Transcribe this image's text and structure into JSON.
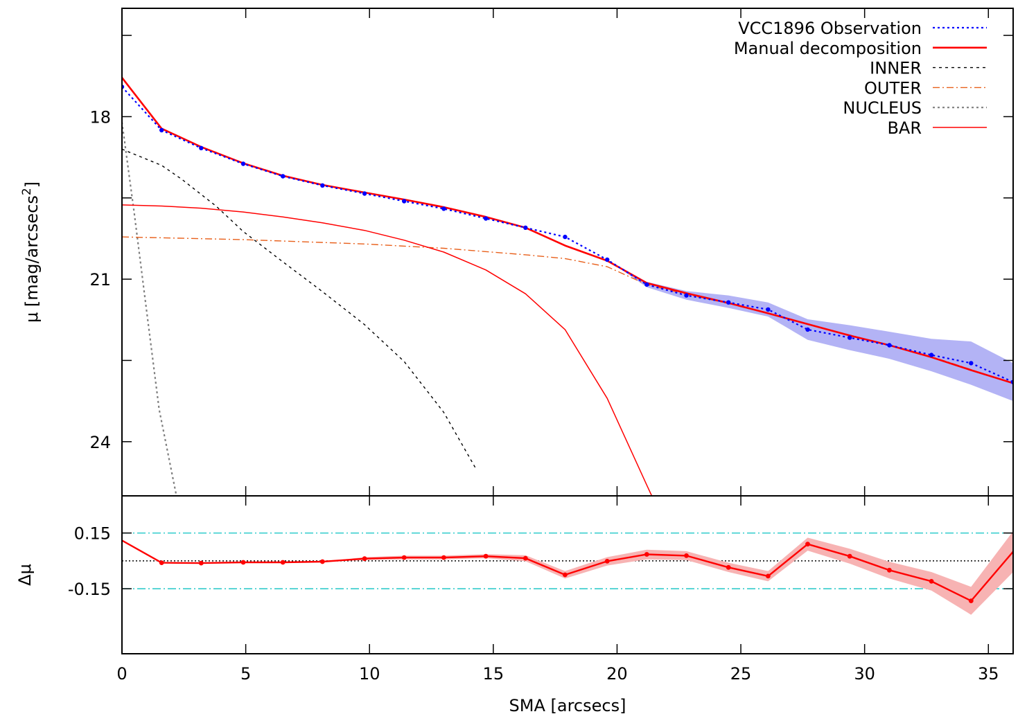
{
  "chart_data": [
    {
      "type": "line",
      "panel": "top",
      "xlabel": "",
      "ylabel": "μ [mag/arcsecs²]",
      "ylabel_parts": {
        "main": "μ [mag/arcsecs",
        "sup": "2",
        "close": "]"
      },
      "xlim": [
        0,
        36
      ],
      "ylim": [
        25.0,
        16.0
      ],
      "y_inverted": true,
      "yticks": [
        18,
        21,
        24
      ],
      "ytick_labels": [
        "18",
        "21",
        "24"
      ],
      "grid": false,
      "legend_position": "top-right",
      "series": [
        {
          "name": "VCC1896 Observation",
          "color": "#0000ff",
          "style": "dotted",
          "markers": true,
          "band": true,
          "x": [
            0,
            1.6,
            3.2,
            4.9,
            6.5,
            8.1,
            9.8,
            11.4,
            13.0,
            14.7,
            16.3,
            17.9,
            19.6,
            21.2,
            22.8,
            24.5,
            26.1,
            27.7,
            29.4,
            31.0,
            32.7,
            34.3,
            36.0
          ],
          "y": [
            17.45,
            18.25,
            18.58,
            18.87,
            19.1,
            19.27,
            19.42,
            19.56,
            19.7,
            19.88,
            20.05,
            20.22,
            20.64,
            21.1,
            21.3,
            21.43,
            21.56,
            21.93,
            22.08,
            22.22,
            22.4,
            22.55,
            22.9
          ],
          "band_lower": [
            17.45,
            18.25,
            18.58,
            18.87,
            19.1,
            19.27,
            19.42,
            19.56,
            19.7,
            19.88,
            20.05,
            20.22,
            20.64,
            21.05,
            21.22,
            21.3,
            21.43,
            21.74,
            21.85,
            21.97,
            22.1,
            22.15,
            22.55
          ],
          "band_upper": [
            17.45,
            18.25,
            18.58,
            18.87,
            19.1,
            19.27,
            19.42,
            19.56,
            19.7,
            19.88,
            20.05,
            20.22,
            20.64,
            21.15,
            21.38,
            21.53,
            21.69,
            22.12,
            22.31,
            22.47,
            22.7,
            22.95,
            23.25
          ]
        },
        {
          "name": "Manual decomposition",
          "color": "#ff0000",
          "style": "solid-thick",
          "x": [
            0,
            1.6,
            3.2,
            4.9,
            6.5,
            8.1,
            9.8,
            11.4,
            13.0,
            14.7,
            16.3,
            17.9,
            19.6,
            21.2,
            22.8,
            24.5,
            26.1,
            27.7,
            29.4,
            31.0,
            32.7,
            34.3,
            36.0
          ],
          "y": [
            17.28,
            18.22,
            18.56,
            18.86,
            19.09,
            19.26,
            19.4,
            19.53,
            19.67,
            19.85,
            20.05,
            20.38,
            20.66,
            21.07,
            21.26,
            21.44,
            21.63,
            21.83,
            22.04,
            22.22,
            22.44,
            22.68,
            22.92
          ]
        },
        {
          "name": "INNER",
          "color": "#000000",
          "style": "dashed",
          "x": [
            0,
            1.6,
            2.4,
            3.8,
            4.9,
            6.5,
            8.1,
            9.8,
            11.4,
            13.0,
            14.3
          ],
          "y": [
            18.6,
            18.9,
            19.15,
            19.65,
            20.12,
            20.68,
            21.23,
            21.84,
            22.52,
            23.46,
            24.5
          ]
        },
        {
          "name": "OUTER",
          "color": "#e85f1a",
          "style": "dash-dot",
          "x": [
            0,
            4.9,
            9.8,
            13.0,
            16.3,
            17.9,
            19.6,
            21.2,
            22.8,
            24.5,
            26.1,
            27.7,
            29.4,
            31.0,
            32.7,
            34.3,
            36.0
          ],
          "y": [
            20.22,
            20.27,
            20.35,
            20.43,
            20.55,
            20.62,
            20.77,
            21.1,
            21.28,
            21.45,
            21.63,
            21.83,
            22.03,
            22.22,
            22.43,
            22.67,
            22.93
          ]
        },
        {
          "name": "NUCLEUS",
          "color": "#7f7f7f",
          "style": "dotted",
          "x": [
            0,
            0.5,
            1.0,
            1.5,
            2.2
          ],
          "y": [
            18.1,
            19.8,
            21.6,
            23.4,
            25.0
          ]
        },
        {
          "name": "BAR",
          "color": "#ff0000",
          "style": "solid-thin",
          "x": [
            0,
            1.6,
            3.2,
            4.9,
            6.5,
            8.1,
            9.8,
            11.4,
            13.0,
            14.7,
            16.3,
            17.9,
            19.6,
            21.2,
            21.4
          ],
          "y": [
            19.63,
            19.65,
            19.69,
            19.76,
            19.85,
            19.96,
            20.1,
            20.28,
            20.5,
            20.83,
            21.27,
            21.93,
            23.2,
            24.8,
            25.0
          ]
        }
      ]
    },
    {
      "type": "line",
      "panel": "bottom",
      "xlabel": "SMA [arcsecs]",
      "ylabel": "Δμ",
      "xlim": [
        0,
        36
      ],
      "xticks": [
        0,
        5,
        10,
        15,
        20,
        25,
        30,
        35
      ],
      "xtick_labels": [
        "0",
        "5",
        "10",
        "15",
        "20",
        "25",
        "30",
        "35"
      ],
      "ylim": [
        -0.5,
        0.35
      ],
      "yticks": [
        0.15,
        -0.15
      ],
      "ytick_labels": [
        "0.15",
        "-0.15"
      ],
      "reference_lines": [
        {
          "y": 0.15,
          "color": "#20c8c8",
          "style": "dash-dot"
        },
        {
          "y": -0.15,
          "color": "#20c8c8",
          "style": "dash-dot"
        },
        {
          "y": 0.0,
          "color": "#000000",
          "style": "dotted"
        }
      ],
      "series": [
        {
          "name": "",
          "color": "#ff0000",
          "style": "solid",
          "markers": true,
          "band": true,
          "band_color": "#f7b3b3",
          "x": [
            0,
            1.6,
            3.2,
            4.9,
            6.5,
            8.1,
            9.8,
            11.4,
            13.0,
            14.7,
            16.3,
            17.9,
            19.6,
            21.2,
            22.8,
            24.5,
            26.1,
            27.7,
            29.4,
            31.0,
            32.7,
            34.3,
            36.0
          ],
          "y": [
            0.11,
            -0.01,
            -0.012,
            -0.008,
            -0.008,
            -0.004,
            0.012,
            0.018,
            0.018,
            0.025,
            0.014,
            -0.075,
            -0.002,
            0.035,
            0.028,
            -0.035,
            -0.082,
            0.09,
            0.025,
            -0.05,
            -0.11,
            -0.215,
            0.05
          ],
          "band_lower": [
            0.11,
            -0.01,
            -0.012,
            -0.008,
            -0.008,
            -0.004,
            0.004,
            0.008,
            0.008,
            0.014,
            -0.002,
            -0.095,
            -0.025,
            0.008,
            0.004,
            -0.06,
            -0.11,
            0.055,
            -0.015,
            -0.095,
            -0.16,
            -0.29,
            -0.06
          ],
          "band_upper": [
            0.11,
            -0.01,
            -0.012,
            -0.008,
            -0.008,
            -0.004,
            0.02,
            0.028,
            0.028,
            0.036,
            0.03,
            -0.055,
            0.02,
            0.06,
            0.052,
            -0.01,
            -0.055,
            0.125,
            0.065,
            -0.005,
            -0.06,
            -0.14,
            0.16
          ]
        }
      ]
    }
  ]
}
